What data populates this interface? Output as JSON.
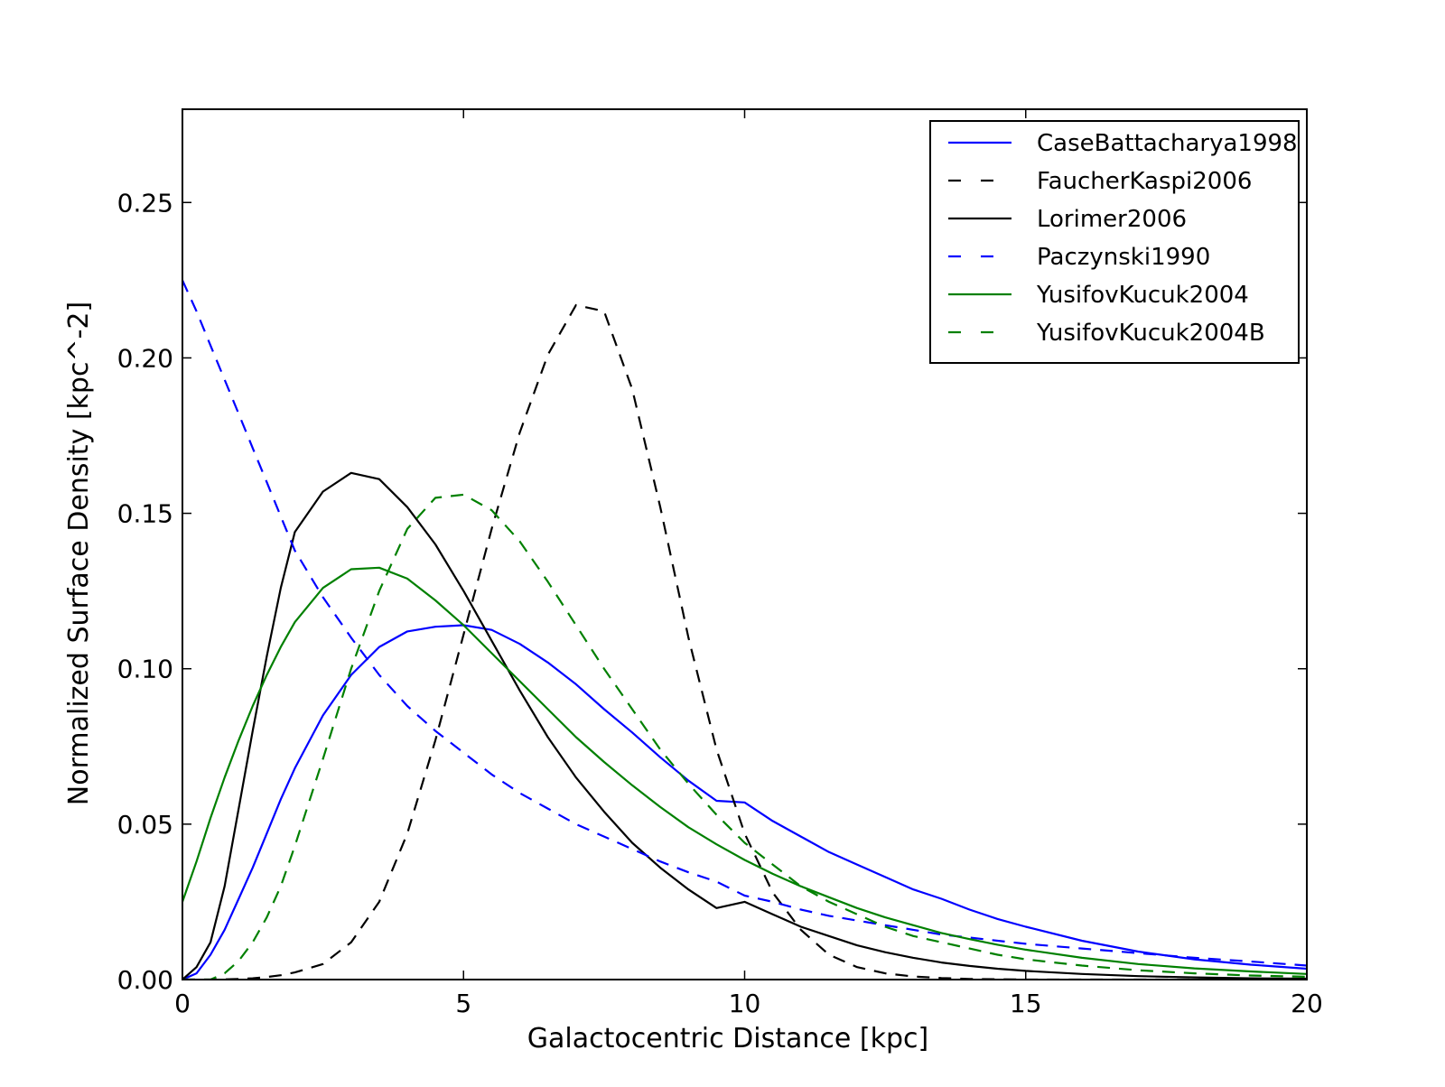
{
  "chart_data": {
    "type": "line",
    "title": "",
    "xlabel": "Galactocentric Distance [kpc]",
    "ylabel": "Normalized Surface Density [kpc^-2]",
    "xlim": [
      0,
      20
    ],
    "ylim": [
      0,
      0.28
    ],
    "xticks": [
      0,
      5,
      10,
      15,
      20
    ],
    "xtick_labels": [
      "0",
      "5",
      "10",
      "15",
      "20"
    ],
    "yticks": [
      0.0,
      0.05,
      0.1,
      0.15,
      0.2,
      0.25
    ],
    "ytick_labels": [
      "0.00",
      "0.05",
      "0.10",
      "0.15",
      "0.20",
      "0.25"
    ],
    "grid": false,
    "legend_position": "top-right",
    "x": [
      0,
      0.25,
      0.5,
      0.75,
      1,
      1.25,
      1.5,
      1.75,
      2,
      2.5,
      3,
      3.5,
      4,
      4.5,
      5,
      5.5,
      6,
      6.5,
      7,
      7.5,
      8,
      8.5,
      9,
      9.5,
      10,
      10.5,
      11,
      11.5,
      12,
      12.5,
      13,
      13.5,
      14,
      14.5,
      15,
      16,
      17,
      18,
      19,
      20
    ],
    "series": [
      {
        "name": "CaseBattacharya1998",
        "color": "#0000ff",
        "dash": "solid",
        "values": [
          0.0,
          0.002,
          0.008,
          0.016,
          0.026,
          0.036,
          0.047,
          0.058,
          0.068,
          0.085,
          0.098,
          0.107,
          0.112,
          0.1135,
          0.114,
          0.1125,
          0.108,
          0.102,
          0.095,
          0.087,
          0.0795,
          0.0715,
          0.064,
          0.0575,
          0.057,
          0.051,
          0.046,
          0.041,
          0.037,
          0.033,
          0.029,
          0.026,
          0.0225,
          0.0195,
          0.017,
          0.0125,
          0.009,
          0.0065,
          0.0048,
          0.0035
        ]
      },
      {
        "name": "FaucherKaspi2006",
        "color": "#000000",
        "dash": "dashed",
        "values": [
          0.0,
          0.0,
          0.0,
          0.0001,
          0.0002,
          0.0004,
          0.0008,
          0.0014,
          0.0023,
          0.005,
          0.012,
          0.025,
          0.047,
          0.077,
          0.111,
          0.145,
          0.176,
          0.201,
          0.217,
          0.215,
          0.19,
          0.152,
          0.11,
          0.074,
          0.047,
          0.028,
          0.016,
          0.008,
          0.004,
          0.002,
          0.001,
          0.0005,
          0.0002,
          0.0001,
          0.0,
          0.0,
          0.0,
          0.0,
          0.0,
          0.0
        ]
      },
      {
        "name": "Lorimer2006",
        "color": "#000000",
        "dash": "solid",
        "values": [
          0.0,
          0.004,
          0.012,
          0.03,
          0.055,
          0.08,
          0.104,
          0.126,
          0.144,
          0.157,
          0.163,
          0.161,
          0.152,
          0.14,
          0.125,
          0.109,
          0.093,
          0.078,
          0.065,
          0.054,
          0.044,
          0.036,
          0.029,
          0.023,
          0.025,
          0.021,
          0.017,
          0.014,
          0.011,
          0.0088,
          0.007,
          0.0055,
          0.0044,
          0.0035,
          0.0028,
          0.0018,
          0.0011,
          0.0007,
          0.0004,
          0.0003
        ]
      },
      {
        "name": "Paczynski1990",
        "color": "#0000ff",
        "dash": "dashed",
        "values": [
          0.225,
          0.215,
          0.204,
          0.193,
          0.182,
          0.171,
          0.16,
          0.149,
          0.138,
          0.123,
          0.11,
          0.098,
          0.088,
          0.08,
          0.073,
          0.066,
          0.06,
          0.055,
          0.05,
          0.046,
          0.042,
          0.038,
          0.0345,
          0.0315,
          0.027,
          0.025,
          0.0225,
          0.0205,
          0.019,
          0.0175,
          0.016,
          0.0145,
          0.0135,
          0.0125,
          0.0115,
          0.01,
          0.0085,
          0.007,
          0.0058,
          0.0045
        ]
      },
      {
        "name": "YusifovKucuk2004",
        "color": "#008000",
        "dash": "solid",
        "values": [
          0.025,
          0.038,
          0.052,
          0.065,
          0.077,
          0.088,
          0.098,
          0.107,
          0.115,
          0.126,
          0.132,
          0.1325,
          0.129,
          0.122,
          0.114,
          0.105,
          0.096,
          0.087,
          0.078,
          0.07,
          0.0625,
          0.0555,
          0.049,
          0.0435,
          0.0385,
          0.034,
          0.03,
          0.0265,
          0.023,
          0.02,
          0.0175,
          0.015,
          0.013,
          0.0112,
          0.0096,
          0.007,
          0.005,
          0.0036,
          0.0026,
          0.0018
        ]
      },
      {
        "name": "YusifovKucuk2004B",
        "color": "#008000",
        "dash": "dashed",
        "values": [
          0.0,
          0.0,
          0.0,
          0.002,
          0.006,
          0.012,
          0.02,
          0.03,
          0.043,
          0.071,
          0.1,
          0.125,
          0.145,
          0.155,
          0.156,
          0.151,
          0.141,
          0.128,
          0.114,
          0.1,
          0.087,
          0.074,
          0.063,
          0.053,
          0.044,
          0.037,
          0.03,
          0.025,
          0.021,
          0.017,
          0.014,
          0.012,
          0.01,
          0.008,
          0.0065,
          0.0045,
          0.003,
          0.002,
          0.0013,
          0.0009
        ]
      }
    ]
  }
}
